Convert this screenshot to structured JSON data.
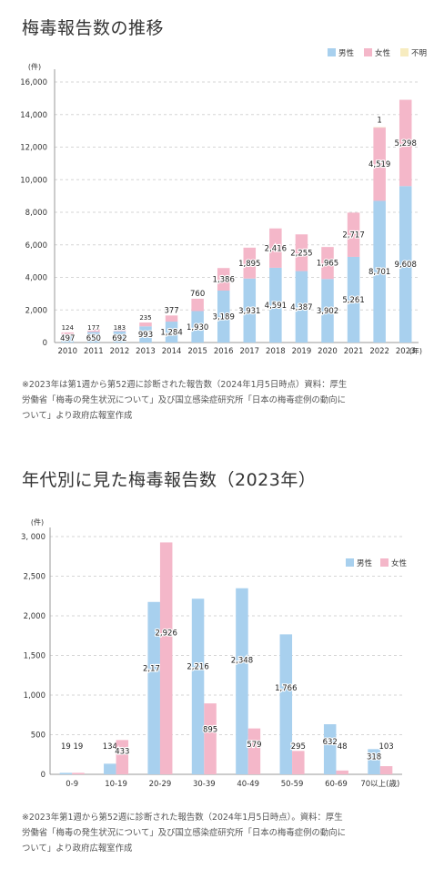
{
  "titles": {
    "chart1": "梅毒報告数の推移",
    "chart2": "年代別に見た梅毒報告数（2023年）"
  },
  "notes": {
    "chart1": [
      "※2023年は第1週から第52週に診断された報告数（2024年1月5日時点）資料：厚生",
      "労働省「梅毒の発生状況について」及び国立感染症研究所「日本の梅毒症例の動向に",
      "ついて」より政府広報室作成"
    ],
    "chart2": [
      "※2023年第1週から第52週に診断された報告数（2024年1月5日時点）。資料：厚生",
      "労働省「梅毒の発生状況について」及び国立感染症研究所「日本の梅毒症例の動向に",
      "ついて」より政府広報室作成"
    ]
  },
  "colors": {
    "male": "#a8d0ee",
    "female": "#f4b7c9",
    "unknown": "#f7ecc0",
    "grid": "#d6d6d6",
    "axis": "#999999"
  },
  "chart_data": [
    {
      "type": "bar",
      "stacked": true,
      "title": "梅毒報告数の推移",
      "ylabel": "(件)",
      "xlabel": "(年)",
      "ylim": [
        0,
        16000
      ],
      "yticks": [
        "0",
        "2,000",
        "4,000",
        "6,000",
        "8,000",
        "10,000",
        "12,000",
        "14,000",
        "16,000"
      ],
      "categories": [
        "2010",
        "2011",
        "2012",
        "2013",
        "2014",
        "2015",
        "2016",
        "2017",
        "2018",
        "2019",
        "2020",
        "2021",
        "2022",
        "2023"
      ],
      "legend": [
        "男性",
        "女性",
        "不明"
      ],
      "legend_position": "top-right",
      "grid": true,
      "series": [
        {
          "name": "男性",
          "values": [
            497,
            650,
            692,
            993,
            1284,
            1930,
            3189,
            3931,
            4591,
            4387,
            3902,
            5261,
            8701,
            9608
          ],
          "labels": [
            "497",
            "650",
            "692",
            "993",
            "1,284",
            "1,930",
            "3,189",
            "3,931",
            "4,591",
            "4,387",
            "3,902",
            "5,261",
            "8,701",
            "9,608"
          ]
        },
        {
          "name": "女性",
          "values": [
            124,
            177,
            183,
            235,
            377,
            760,
            1386,
            1895,
            2416,
            2255,
            1965,
            2717,
            4519,
            5298
          ],
          "labels": [
            "124",
            "177",
            "183",
            "235",
            "377",
            "760",
            "1,386",
            "1,895",
            "2,416",
            "2,255",
            "1,965",
            "2,717",
            "4,519",
            "5,298"
          ]
        },
        {
          "name": "不明",
          "values": [
            0,
            0,
            0,
            0,
            0,
            0,
            0,
            0,
            0,
            0,
            0,
            0,
            1,
            0
          ],
          "labels": [
            "",
            "",
            "",
            "",
            "",
            "",
            "",
            "",
            "",
            "",
            "",
            "",
            "1",
            ""
          ]
        }
      ]
    },
    {
      "type": "bar",
      "stacked": false,
      "title": "年代別に見た梅毒報告数（2023年）",
      "ylabel": "(件)",
      "xlabel": "",
      "ylim": [
        0,
        3000
      ],
      "yticks": [
        "0",
        "500",
        "1,000",
        "1,500",
        "2,000",
        "2,500",
        "3, 000"
      ],
      "categories": [
        "0-9",
        "10-19",
        "20-29",
        "30-39",
        "40-49",
        "50-59",
        "60-69",
        "70以上(歳)"
      ],
      "legend": [
        "男性",
        "女性"
      ],
      "legend_position": "top-right",
      "grid": true,
      "series": [
        {
          "name": "男性",
          "values": [
            19,
            134,
            2175,
            2216,
            2348,
            1766,
            632,
            318
          ],
          "labels": [
            "19",
            "134",
            "2,175",
            "2,216",
            "2,348",
            "1,766",
            "632",
            "318"
          ]
        },
        {
          "name": "女性",
          "values": [
            19,
            433,
            2926,
            895,
            579,
            295,
            48,
            103
          ],
          "labels": [
            "19",
            "433",
            "2,926",
            "895",
            "579",
            "295",
            "48",
            "103"
          ]
        }
      ]
    }
  ]
}
